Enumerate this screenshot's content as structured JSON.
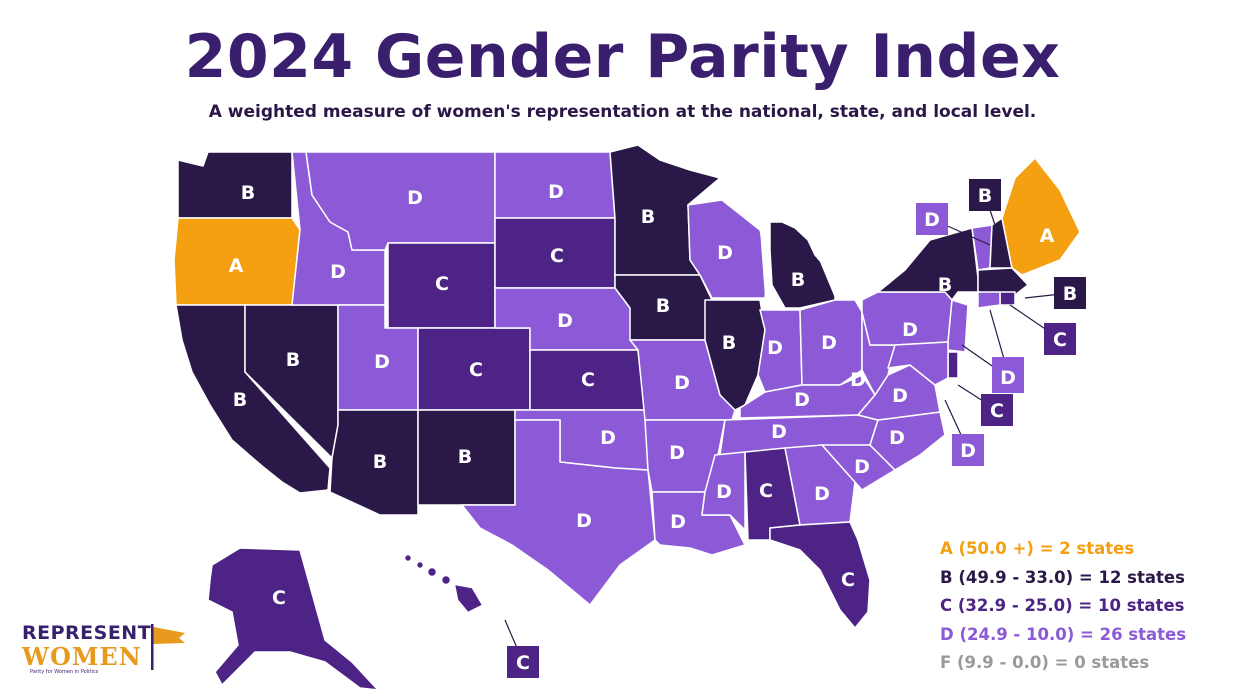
{
  "title": "2024 Gender Parity Index",
  "subtitle": "A weighted measure of women's representation at the national, state, and local level.",
  "colors": {
    "A": "#f5a011",
    "B": "#2a1848",
    "C": "#4d2485",
    "D": "#8c5ad6",
    "F": "#9a9a9a",
    "border": "#ffffff"
  },
  "legend": [
    {
      "grade": "A",
      "text": "A (50.0 +) = 2 states"
    },
    {
      "grade": "B",
      "text": "B (49.9 - 33.0) = 12 states"
    },
    {
      "grade": "C",
      "text": "C (32.9 - 25.0) = 10 states"
    },
    {
      "grade": "D",
      "text": "D (24.9 - 10.0) = 26 states"
    },
    {
      "grade": "F",
      "text": "F (9.9 - 0.0) = 0 states"
    }
  ],
  "states": [
    {
      "abbr": "WA",
      "grade": "B"
    },
    {
      "abbr": "OR",
      "grade": "A"
    },
    {
      "abbr": "CA",
      "grade": "B"
    },
    {
      "abbr": "NV",
      "grade": "B"
    },
    {
      "abbr": "ID",
      "grade": "D"
    },
    {
      "abbr": "MT",
      "grade": "D"
    },
    {
      "abbr": "WY",
      "grade": "C"
    },
    {
      "abbr": "UT",
      "grade": "D"
    },
    {
      "abbr": "AZ",
      "grade": "B"
    },
    {
      "abbr": "CO",
      "grade": "C"
    },
    {
      "abbr": "NM",
      "grade": "B"
    },
    {
      "abbr": "ND",
      "grade": "D"
    },
    {
      "abbr": "SD",
      "grade": "C"
    },
    {
      "abbr": "NE",
      "grade": "D"
    },
    {
      "abbr": "KS",
      "grade": "C"
    },
    {
      "abbr": "OK",
      "grade": "D"
    },
    {
      "abbr": "TX",
      "grade": "D"
    },
    {
      "abbr": "MN",
      "grade": "B"
    },
    {
      "abbr": "IA",
      "grade": "B"
    },
    {
      "abbr": "MO",
      "grade": "D"
    },
    {
      "abbr": "AR",
      "grade": "D"
    },
    {
      "abbr": "LA",
      "grade": "D"
    },
    {
      "abbr": "WI",
      "grade": "D"
    },
    {
      "abbr": "IL",
      "grade": "B"
    },
    {
      "abbr": "MI",
      "grade": "B"
    },
    {
      "abbr": "IN",
      "grade": "D"
    },
    {
      "abbr": "OH",
      "grade": "D"
    },
    {
      "abbr": "KY",
      "grade": "D"
    },
    {
      "abbr": "TN",
      "grade": "D"
    },
    {
      "abbr": "MS",
      "grade": "D"
    },
    {
      "abbr": "AL",
      "grade": "C"
    },
    {
      "abbr": "GA",
      "grade": "D"
    },
    {
      "abbr": "FL",
      "grade": "C"
    },
    {
      "abbr": "SC",
      "grade": "D"
    },
    {
      "abbr": "NC",
      "grade": "D"
    },
    {
      "abbr": "VA",
      "grade": "D"
    },
    {
      "abbr": "WV",
      "grade": "D"
    },
    {
      "abbr": "PA",
      "grade": "D"
    },
    {
      "abbr": "NY",
      "grade": "B"
    },
    {
      "abbr": "VT",
      "grade": "D"
    },
    {
      "abbr": "NH",
      "grade": "B"
    },
    {
      "abbr": "ME",
      "grade": "A"
    },
    {
      "abbr": "MA",
      "grade": "B"
    },
    {
      "abbr": "RI",
      "grade": "C"
    },
    {
      "abbr": "CT",
      "grade": "D"
    },
    {
      "abbr": "NJ",
      "grade": "D"
    },
    {
      "abbr": "DE",
      "grade": "C"
    },
    {
      "abbr": "MD",
      "grade": "D"
    },
    {
      "abbr": "AK",
      "grade": "C"
    },
    {
      "abbr": "HI",
      "grade": "C"
    }
  ],
  "logo": {
    "line1": "REPRESENT",
    "line2": "WOMEN",
    "tagline": "Parity for Women in Politics"
  }
}
